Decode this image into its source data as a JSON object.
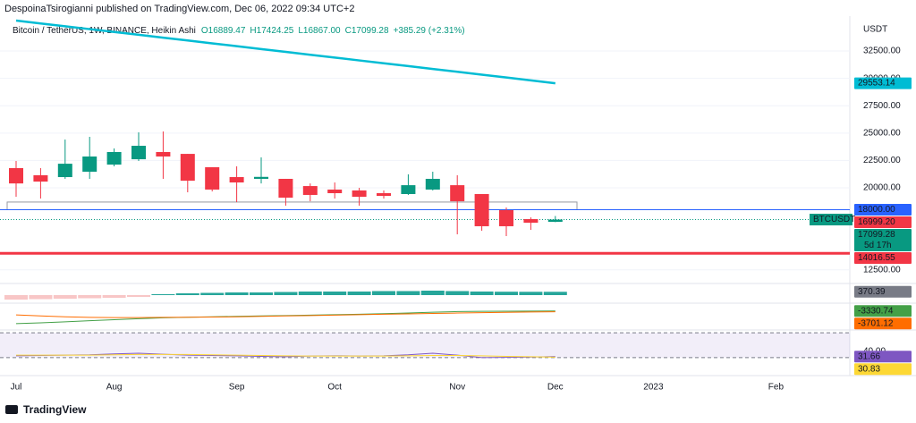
{
  "chart_data": {
    "type": "candlestick",
    "header": "DespoinaTsirogianni published on TradingView.com, Dec 06, 2022 09:34 UTC+2",
    "title": "Bitcoin / TetherUS, 1W, BINANCE, Heikin Ashi",
    "legend_values": [
      "O16889.47",
      "H17424.25",
      "L16867.00",
      "C17099.28",
      "+385.29 (+2.31%)"
    ],
    "unit": "USDT",
    "footer": "TradingView",
    "categories": [
      "Jul",
      null,
      null,
      null,
      "Aug",
      null,
      null,
      null,
      null,
      "Sep",
      null,
      null,
      null,
      "Oct",
      null,
      null,
      null,
      null,
      "Nov",
      null,
      null,
      null,
      "Dec",
      null,
      null,
      null,
      "2023",
      null,
      null,
      null,
      null,
      "Feb",
      null,
      null
    ],
    "open": [
      21800,
      21150,
      20980,
      21470,
      22120,
      22610,
      23270,
      23100,
      21880,
      20980,
      20820,
      20820,
      20160,
      19840,
      19760,
      19510,
      19430,
      19840,
      20240,
      19430,
      17960,
      17140,
      16889.47,
      null,
      null,
      null,
      null,
      null,
      null,
      null,
      null,
      null,
      null,
      null
    ],
    "high": [
      22450,
      21800,
      24410,
      24660,
      23600,
      25070,
      25150,
      23100,
      21880,
      21960,
      22780,
      20820,
      20400,
      20490,
      20000,
      19760,
      21230,
      21470,
      21150,
      19430,
      18200,
      17300,
      17424.25,
      null,
      null,
      null,
      null,
      null,
      null,
      null,
      null,
      null,
      null,
      null
    ],
    "low": [
      19180,
      19020,
      20820,
      20820,
      21960,
      22450,
      20820,
      19590,
      19670,
      18690,
      20400,
      18370,
      18770,
      19020,
      18370,
      19020,
      19350,
      19760,
      15750,
      16080,
      15590,
      16160,
      16867,
      null,
      null,
      null,
      null,
      null,
      null,
      null,
      null,
      null,
      null,
      null
    ],
    "close": [
      20400,
      20570,
      22200,
      22860,
      23270,
      23840,
      22860,
      20650,
      19840,
      20490,
      21000,
      19100,
      19350,
      19510,
      19180,
      19260,
      20240,
      20820,
      18770,
      16490,
      16490,
      16810,
      17099.28,
      null,
      null,
      null,
      null,
      null,
      null,
      null,
      null,
      null,
      null,
      null
    ],
    "up_color": "#089981",
    "down_color": "#f23645",
    "ylim": [
      11340,
      35690
    ],
    "yticks": [
      {
        "value": 32500,
        "label": "32500.00"
      },
      {
        "value": 30000,
        "label": "30000.00"
      },
      {
        "value": 27500,
        "label": "27500.00"
      },
      {
        "value": 25000,
        "label": "25000.00"
      },
      {
        "value": 22500,
        "label": "22500.00"
      },
      {
        "value": 20000,
        "label": "20000.00"
      },
      {
        "value": 12500,
        "label": "12500.00"
      }
    ],
    "ma": {
      "color": "#00bcd4",
      "values": [
        35280,
        35020,
        34760,
        34500,
        34240,
        33980,
        33720,
        33460,
        33200,
        32940,
        32680,
        32420,
        32160,
        31900,
        31640,
        31380,
        31120,
        30860,
        30600,
        30340,
        30080,
        29820,
        29553.14,
        null,
        null,
        null,
        null,
        null,
        null,
        null,
        null,
        null,
        null,
        null
      ]
    },
    "zone": {
      "low": 18000,
      "high": 18700,
      "color": "#9598a1"
    },
    "levels": [
      {
        "value": 18000,
        "label": "18000.00",
        "color": "#2962ff",
        "line_width": 1
      },
      {
        "value": 14016.55,
        "color": "#f23645",
        "line_width": 3
      }
    ],
    "current_price": {
      "value": 17099.28,
      "countdown": "5d 17h",
      "symbol": "BTCUSDT",
      "color": "#089981"
    },
    "price_labels": [
      {
        "value": 16999.2,
        "label": "16999.20",
        "color": "#f23645"
      }
    ],
    "panes": [
      {
        "type": "histogram",
        "ylim": [
          -800,
          1200
        ],
        "pos_color": "#26a69a",
        "neg_color": "#f8c6c6",
        "label_color": "#787b86",
        "values": [
          -500,
          -450,
          -400,
          -350,
          -300,
          -200,
          100,
          200,
          250,
          300,
          300,
          350,
          400,
          400,
          400,
          450,
          450,
          500,
          450,
          400,
          380,
          370,
          370.39,
          null,
          null,
          null,
          null,
          null,
          null,
          null,
          null,
          null,
          null,
          null
        ]
      },
      {
        "type": "line",
        "ylim": [
          -12000,
          0
        ],
        "series": [
          {
            "color": "#43a047",
            "values": [
              -9400,
              -9000,
              -8500,
              -8000,
              -7500,
              -7000,
              -6600,
              -6300,
              -6100,
              -5900,
              -5700,
              -5500,
              -5300,
              -5100,
              -4900,
              -4600,
              -4300,
              -3900,
              -3600,
              -3500,
              -3450,
              -3400,
              -3330.74,
              null,
              null,
              null,
              null,
              null,
              null,
              null,
              null,
              null,
              null,
              null
            ]
          },
          {
            "color": "#ff6d00",
            "values": [
              -5200,
              -5700,
              -6100,
              -6400,
              -6500,
              -6500,
              -6400,
              -6300,
              -6200,
              -6100,
              -5900,
              -5700,
              -5500,
              -5300,
              -5100,
              -4900,
              -4700,
              -4500,
              -4300,
              -4100,
              -3950,
              -3800,
              -3701.12,
              null,
              null,
              null,
              null,
              null,
              null,
              null,
              null,
              null,
              null,
              null
            ]
          }
        ]
      },
      {
        "type": "line",
        "ylim": [
          4,
          73
        ],
        "band": [
          30,
          70
        ],
        "band_color": "#7e57c2",
        "yticks": [
          {
            "value": 40,
            "label": "40.00"
          }
        ],
        "series": [
          {
            "color": "#7e57c2",
            "values": [
              33,
              33.5,
              34,
              34.5,
              36,
              37,
              35.5,
              34,
              33.5,
              33,
              32,
              31.5,
              32.5,
              33,
              32.5,
              33,
              34.5,
              37,
              34,
              30,
              30.5,
              31,
              31.66,
              null,
              null,
              null,
              null,
              null,
              null,
              null,
              null,
              null,
              null,
              null
            ]
          },
          {
            "color": "#fdd835",
            "values": [
              34,
              34,
              34,
              34,
              34.5,
              35,
              35,
              35,
              34.5,
              34,
              33.5,
              33,
              32.5,
              32.5,
              32.5,
              32.5,
              33,
              33.5,
              33.5,
              33,
              32,
              31.5,
              30.83,
              null,
              null,
              null,
              null,
              null,
              null,
              null,
              null,
              null,
              null,
              null
            ]
          }
        ]
      }
    ]
  }
}
